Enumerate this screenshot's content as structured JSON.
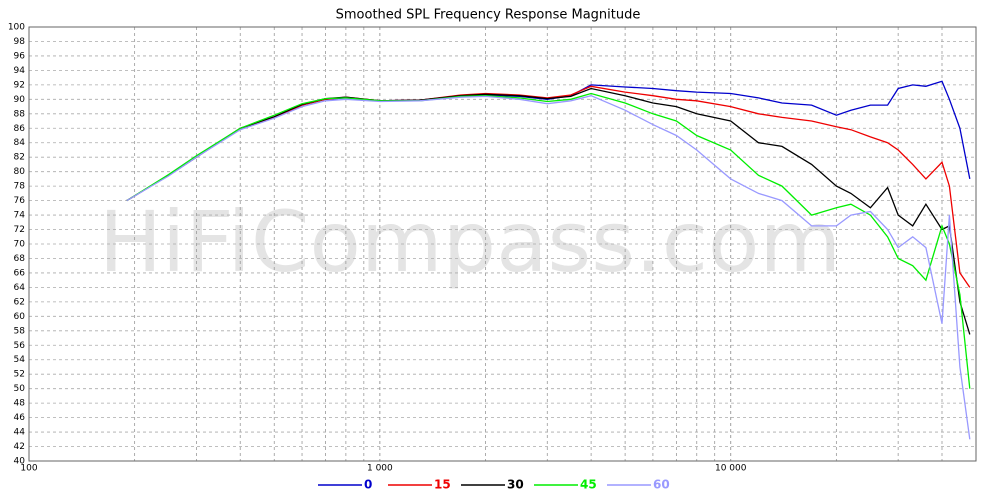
{
  "chart_data": {
    "type": "line",
    "title": "Smoothed SPL Frequency Response Magnitude",
    "watermark": "HiFiCompass.com",
    "log_x": true,
    "grid": true,
    "xlim": [
      100,
      50000
    ],
    "xticks": [
      100,
      {
        "value": 1000,
        "label": "1 000"
      },
      {
        "value": 10000,
        "label": "10 000"
      }
    ],
    "xminor_ticks": [
      200,
      300,
      400,
      500,
      600,
      700,
      800,
      900,
      2000,
      3000,
      4000,
      5000,
      6000,
      7000,
      8000,
      9000,
      20000,
      30000,
      40000
    ],
    "ylim": [
      40,
      100
    ],
    "yticks": [
      40,
      42,
      44,
      46,
      48,
      50,
      52,
      54,
      56,
      58,
      60,
      62,
      64,
      66,
      68,
      70,
      72,
      74,
      76,
      78,
      80,
      82,
      84,
      86,
      88,
      90,
      92,
      94,
      96,
      98,
      100
    ],
    "x": [
      190,
      250,
      300,
      400,
      500,
      600,
      700,
      800,
      1000,
      1300,
      1700,
      2000,
      2500,
      3000,
      3500,
      4000,
      5000,
      6000,
      7000,
      8000,
      10000,
      12000,
      14000,
      17000,
      20000,
      22000,
      25000,
      28000,
      30000,
      33000,
      36000,
      40000,
      42000,
      45000,
      48000
    ],
    "legend": "bottom",
    "series": [
      {
        "name": "0",
        "color": "#0000cc",
        "values": [
          76,
          79.5,
          82,
          86,
          87.5,
          89.2,
          90,
          90.2,
          89.8,
          89.9,
          90.5,
          90.6,
          90.4,
          90,
          90.5,
          92,
          91.7,
          91.5,
          91.2,
          91,
          90.8,
          90.2,
          89.5,
          89.2,
          87.8,
          88.5,
          89.2,
          89.2,
          91.5,
          92,
          91.8,
          92.5,
          90,
          86,
          79
        ]
      },
      {
        "name": "15",
        "color": "#ee0000",
        "values": [
          76,
          79.5,
          82,
          86,
          87.5,
          89.2,
          90,
          90.3,
          89.8,
          89.9,
          90.6,
          90.8,
          90.6,
          90.2,
          90.6,
          91.8,
          91,
          90.5,
          90,
          89.8,
          89,
          88,
          87.5,
          87,
          86.2,
          85.8,
          84.8,
          84,
          83,
          81,
          79,
          81.3,
          78,
          66,
          64
        ]
      },
      {
        "name": "30",
        "color": "#000000",
        "values": [
          76,
          79.5,
          82,
          86,
          87.6,
          89.3,
          90.1,
          90.3,
          89.8,
          89.9,
          90.5,
          90.7,
          90.5,
          90.1,
          90.4,
          91.5,
          90.5,
          89.5,
          89,
          88,
          87,
          84,
          83.5,
          81,
          78,
          77,
          75,
          77.8,
          74,
          72.5,
          75.5,
          72,
          72.5,
          62,
          57.5
        ]
      },
      {
        "name": "45",
        "color": "#00ee00",
        "values": [
          76,
          79.6,
          82.2,
          86,
          87.8,
          89.4,
          90.1,
          90.2,
          89.8,
          89.8,
          90.4,
          90.5,
          90.2,
          89.7,
          90,
          90.8,
          89.5,
          88,
          87,
          85,
          83,
          79.5,
          78,
          74,
          75,
          75.5,
          74,
          71,
          68,
          67,
          65,
          72.5,
          70,
          63,
          50
        ]
      },
      {
        "name": "60",
        "color": "#9999ff",
        "values": [
          76,
          79.4,
          82,
          85.8,
          87.4,
          89,
          89.8,
          90,
          89.7,
          89.8,
          90.3,
          90.4,
          90,
          89.4,
          89.8,
          90.5,
          88.5,
          86.5,
          85,
          83,
          79,
          77,
          76,
          72.5,
          72.5,
          74,
          74.5,
          72,
          69.5,
          71,
          69.5,
          59,
          74,
          53,
          43
        ]
      }
    ]
  }
}
